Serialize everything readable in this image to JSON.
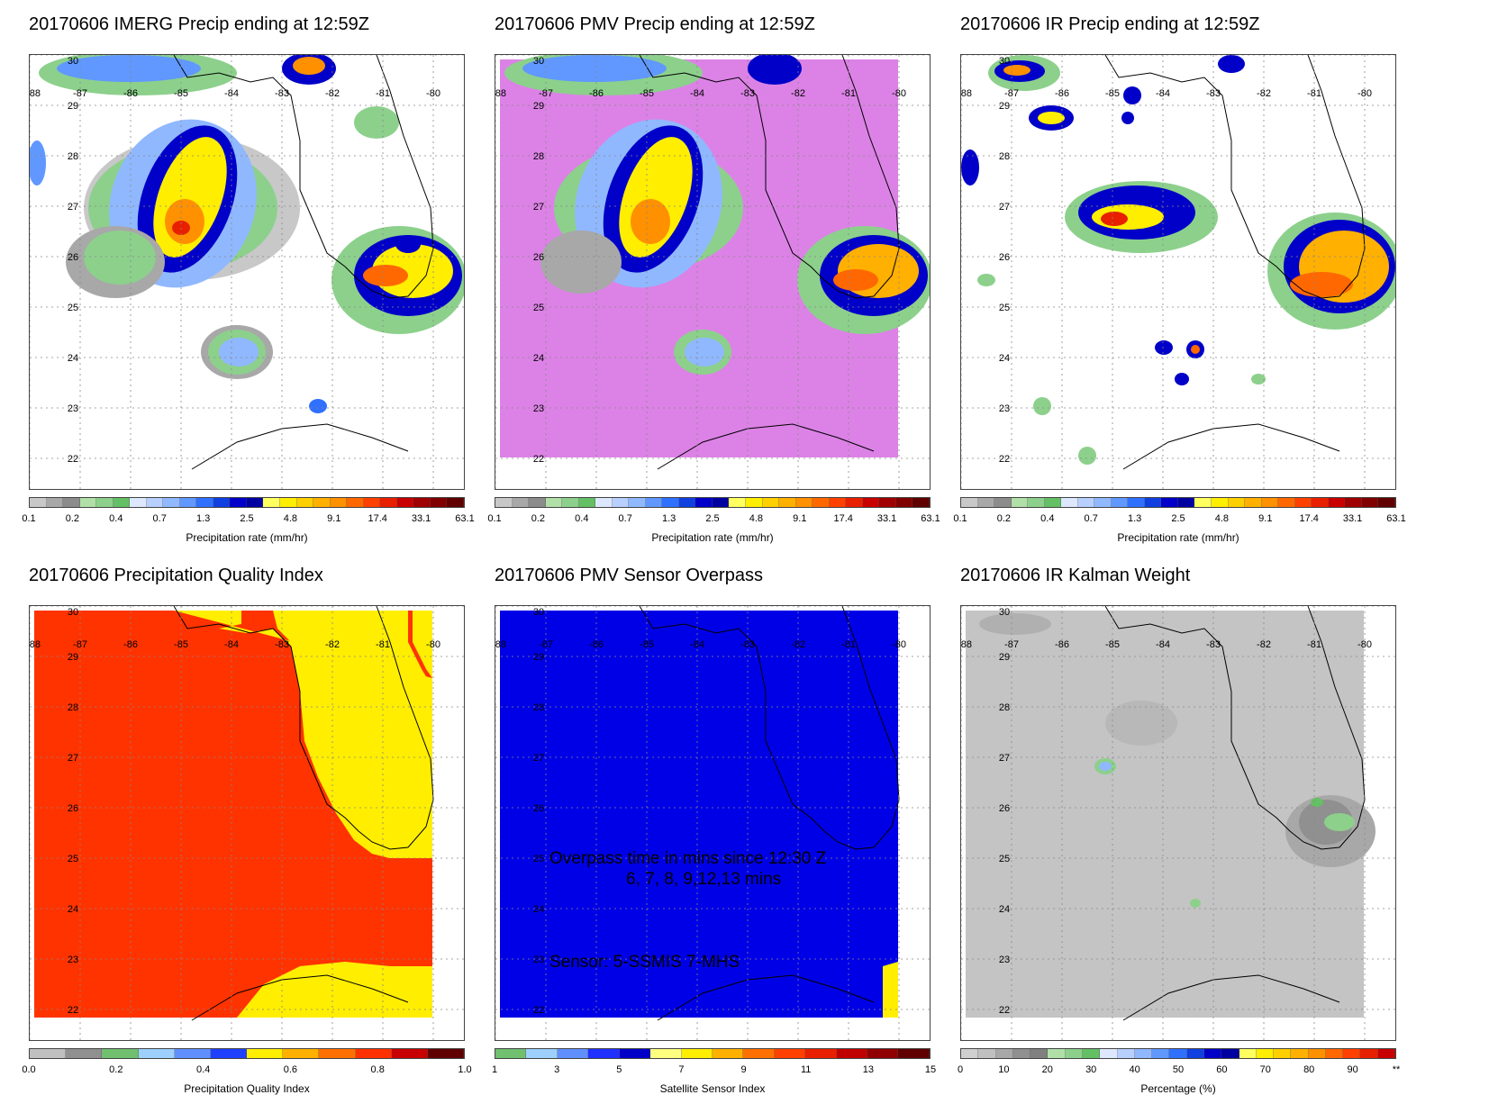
{
  "panels": [
    {
      "title": "20170606 IMERG Precip ending at 12:59Z",
      "colorbar_label": "Precipitation rate (mm/hr)",
      "ticks": [
        "0.1",
        "0.2",
        "0.4",
        "0.7",
        "1.3",
        "2.5",
        "4.8",
        "9.1",
        "17.4",
        "33.1",
        "63.1"
      ],
      "colorbar": "precip"
    },
    {
      "title": "20170606 PMV Precip ending at 12:59Z",
      "colorbar_label": "Precipitation rate (mm/hr)",
      "ticks": [
        "0.1",
        "0.2",
        "0.4",
        "0.7",
        "1.3",
        "2.5",
        "4.8",
        "9.1",
        "17.4",
        "33.1",
        "63.1"
      ],
      "colorbar": "precip"
    },
    {
      "title": "20170606 IR Precip ending at 12:59Z",
      "colorbar_label": "Precipitation rate (mm/hr)",
      "ticks": [
        "0.1",
        "0.2",
        "0.4",
        "0.7",
        "1.3",
        "2.5",
        "4.8",
        "9.1",
        "17.4",
        "33.1",
        "63.1"
      ],
      "colorbar": "precip"
    },
    {
      "title": "20170606 Precipitation Quality Index",
      "colorbar_label": "Precipitation Quality Index",
      "ticks": [
        "0.0",
        "0.2",
        "0.4",
        "0.6",
        "0.8",
        "1.0"
      ],
      "colorbar": "pqi"
    },
    {
      "title": "20170606 PMV Sensor Overpass",
      "colorbar_label": "Satellite Sensor Index",
      "ticks": [
        "1",
        "3",
        "5",
        "7",
        "9",
        "11",
        "13",
        "15"
      ],
      "colorbar": "sensor"
    },
    {
      "title": "20170606 IR Kalman Weight",
      "colorbar_label": "Percentage (%)",
      "ticks": [
        "0",
        "10",
        "20",
        "30",
        "40",
        "50",
        "60",
        "70",
        "80",
        "90",
        "**"
      ],
      "colorbar": "kalman"
    }
  ],
  "lon_labels": [
    "-88",
    "-87",
    "-86",
    "-85",
    "-84",
    "-83",
    "-82",
    "-81",
    "-80"
  ],
  "lat_labels": [
    "30",
    "29",
    "28",
    "27",
    "26",
    "25",
    "24",
    "23",
    "22"
  ],
  "overpass_text": {
    "line1": "Overpass time in mins since 12:30 Z",
    "line2": "6, 7, 8, 9,12,13 mins",
    "line3": "Sensor:   5-SSMIS  7-MHS"
  },
  "colors": {
    "precip": [
      "#c8c8c8",
      "#a8a8a8",
      "#8c8c8c",
      "#b0e0a8",
      "#8cd08c",
      "#64c064",
      "#dde8ff",
      "#b8d0ff",
      "#90b8ff",
      "#6098ff",
      "#3070ff",
      "#1040e0",
      "#0000c8",
      "#0000a0",
      "#ffff60",
      "#ffee00",
      "#ffd000",
      "#ffb000",
      "#ff9000",
      "#ff6800",
      "#ff4000",
      "#e82000",
      "#c80000",
      "#a00000",
      "#800000",
      "#600000"
    ],
    "pqi": [
      "#c0c0c0",
      "#909090",
      "#70c070",
      "#9ed0ff",
      "#6090ff",
      "#2040ff",
      "#ffee00",
      "#ffb000",
      "#ff7000",
      "#ff3000",
      "#c80000",
      "#600000"
    ],
    "sensor": [
      "#70c070",
      "#9ed0ff",
      "#6090ff",
      "#2030ff",
      "#0000c8",
      "#ffff80",
      "#ffee00",
      "#ffb000",
      "#ff7000",
      "#ff4000",
      "#e82000",
      "#c00000",
      "#900000",
      "#600000"
    ],
    "kalman": [
      "#d0d0d0",
      "#c0c0c0",
      "#a8a8a8",
      "#909090",
      "#808080",
      "#b0e0a8",
      "#8cd08c",
      "#64c064",
      "#dde8ff",
      "#b8d0ff",
      "#90b8ff",
      "#6098ff",
      "#3070ff",
      "#1040e0",
      "#0000c8",
      "#0000a0",
      "#ffff60",
      "#ffee00",
      "#ffd000",
      "#ffb000",
      "#ff9000",
      "#ff6800",
      "#ff4000",
      "#e82000",
      "#c80000"
    ],
    "pqi_fill": "#ff3300",
    "pqi_yellow": "#ffee00",
    "pmv_bg": "#dc82e6",
    "sensor_bg": "#0000e6",
    "kalman_bg": "#c4c4c4"
  }
}
